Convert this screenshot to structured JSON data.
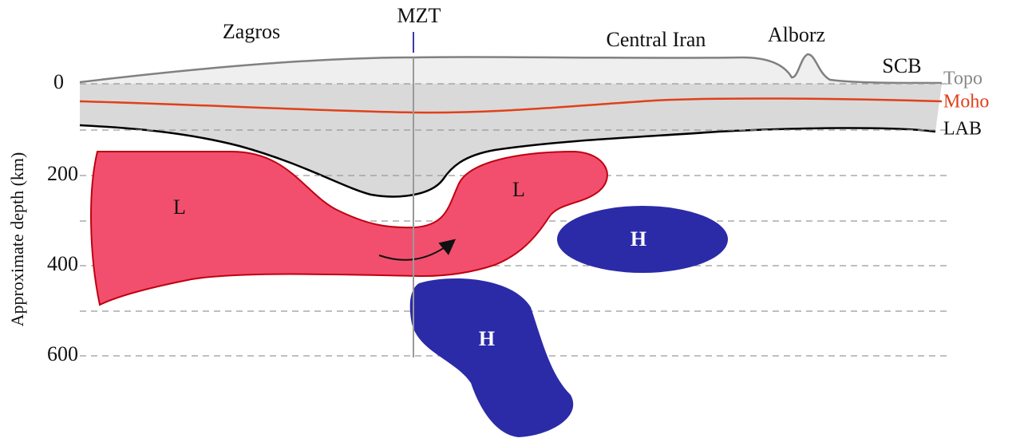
{
  "axis": {
    "label": "Approximate depth (km)",
    "ticks": [
      "0",
      "200",
      "400",
      "600"
    ]
  },
  "regions": [
    "Zagros",
    "MZT",
    "Central Iran",
    "Alborz",
    "SCB"
  ],
  "boundaries": [
    "Topo",
    "Moho",
    "LAB"
  ],
  "anomalies": [
    "L",
    "L",
    "H",
    "H"
  ]
}
